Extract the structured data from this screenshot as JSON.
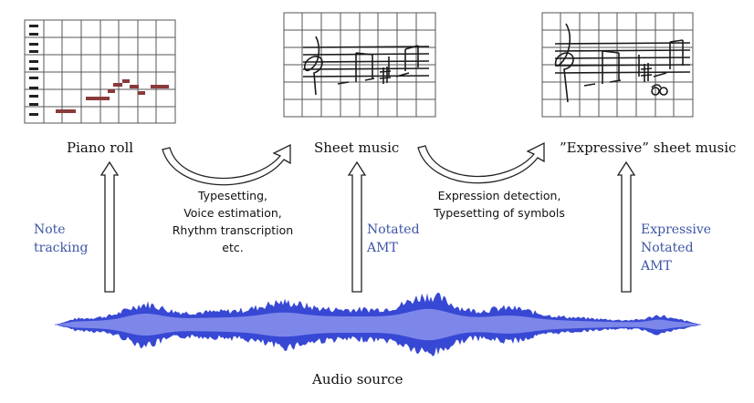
{
  "colors": {
    "text": "#111111",
    "accent_text": "#3d55a6",
    "waveform_dark": "#3748d4",
    "waveform_light": "#7d87ea",
    "grid": "#555555",
    "ink": "#1a1a1a",
    "note_red": "#b53a3a"
  },
  "stages": {
    "piano_roll": "Piano roll",
    "sheet_music": "Sheet music",
    "expressive_sheet_music": "”Expressive” sheet music"
  },
  "transitions": {
    "first": [
      "Typesetting,",
      "Voice estimation,",
      "Rhythm transcription",
      "etc."
    ],
    "second": [
      "Expression detection,",
      "Typesetting of symbols"
    ]
  },
  "tasks": {
    "note_tracking": [
      "Note",
      "tracking"
    ],
    "notated_amt": [
      "Notated",
      "AMT"
    ],
    "expressive_notated_amt": [
      "Expressive",
      "Notated",
      "AMT"
    ]
  },
  "source": {
    "label": "Audio source"
  },
  "icons": [
    "piano-roll-sketch",
    "sheet-music-sketch",
    "expressive-sheet-music-sketch",
    "curved-arrow-icon",
    "up-arrow-icon",
    "audio-waveform"
  ]
}
